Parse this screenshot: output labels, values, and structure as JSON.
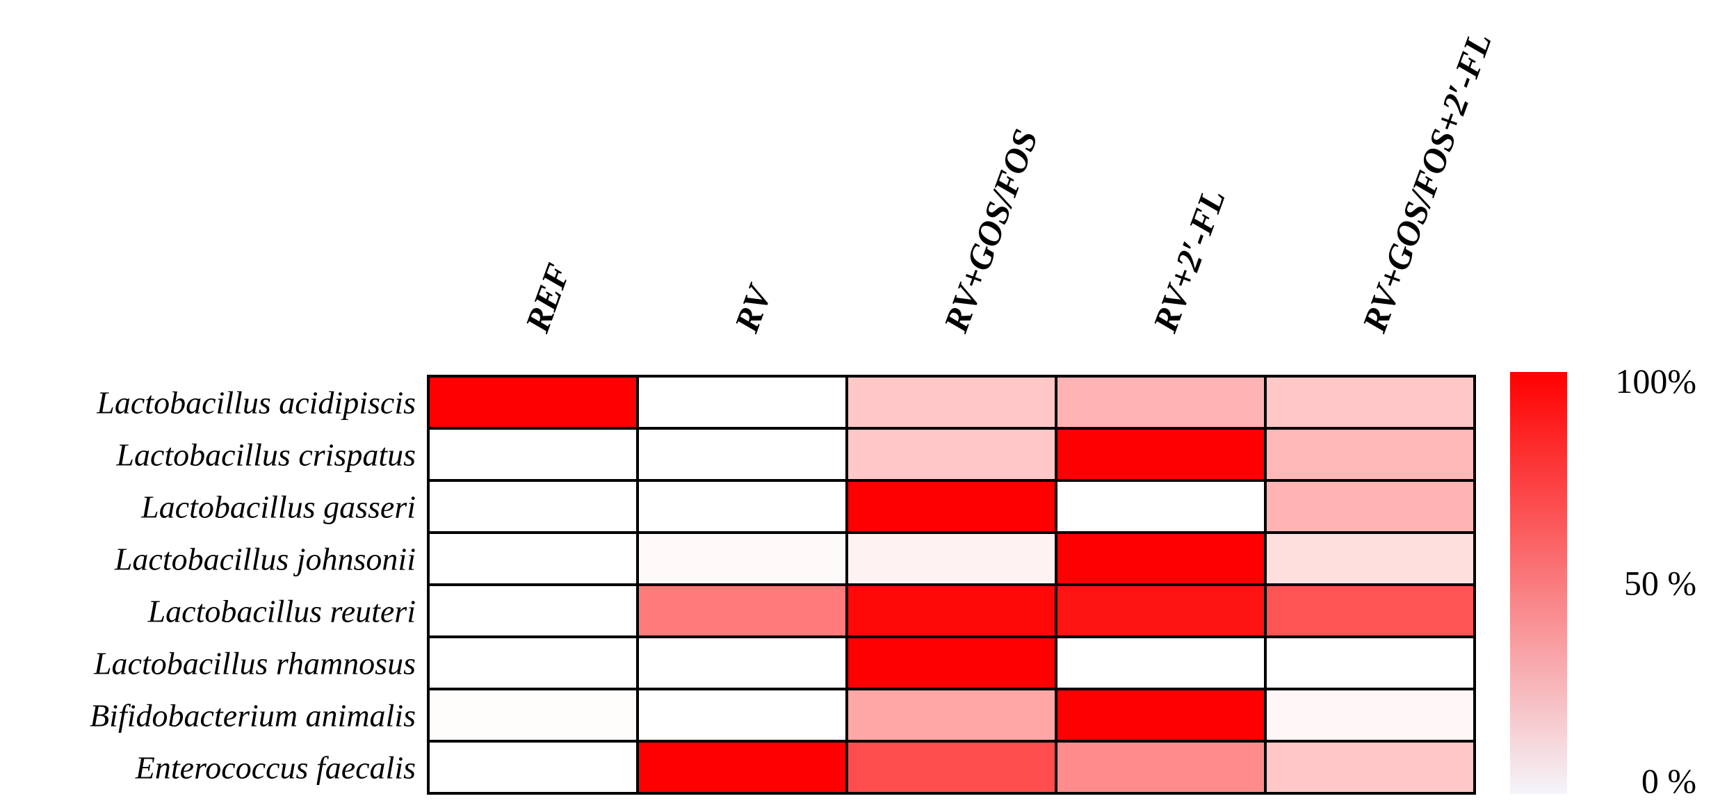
{
  "chart_data": {
    "type": "heatmap",
    "title": "",
    "columns": [
      "REF",
      "RV",
      "RV+GOS/FOS",
      "RV+2′-FL",
      "RV+GOS/FOS+2′-FL"
    ],
    "rows": [
      "Lactobacillus acidipiscis",
      "Lactobacillus crispatus",
      "Lactobacillus gasseri",
      "Lactobacillus johnsonii",
      "Lactobacillus reuteri",
      "Lactobacillus rhamnosus",
      "Bifidobacterium animalis",
      "Enterococcus faecalis"
    ],
    "values": [
      [
        100,
        0,
        22,
        30,
        22
      ],
      [
        0,
        0,
        22,
        100,
        28
      ],
      [
        0,
        0,
        100,
        0,
        30
      ],
      [
        0,
        2,
        5,
        100,
        13
      ],
      [
        0,
        52,
        97,
        92,
        67
      ],
      [
        0,
        0,
        100,
        0,
        0
      ],
      [
        1,
        0,
        35,
        100,
        3
      ],
      [
        0,
        100,
        70,
        45,
        22
      ]
    ],
    "value_range": [
      0,
      100
    ],
    "colorscale": {
      "low": "#f4f5fa",
      "high": "#ff0000"
    },
    "legend": {
      "position": "right",
      "ticks": [
        "100%",
        "50 %",
        "0 %"
      ]
    },
    "grid": true
  }
}
